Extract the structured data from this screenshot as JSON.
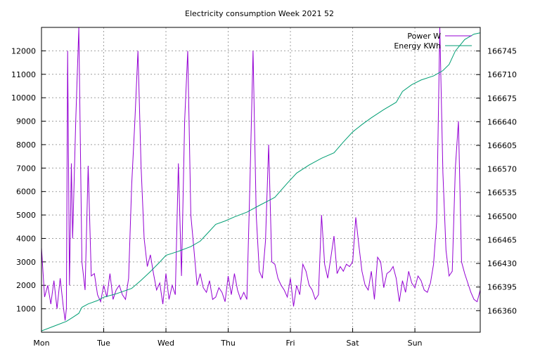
{
  "chart_data": {
    "type": "line",
    "title": "Electricity consumption Week 2021 52",
    "x_tick_labels": [
      "Mon",
      "Tue",
      "Wed",
      "Thu",
      "Fri",
      "Sat",
      "Sun"
    ],
    "xlim_days": [
      0,
      7.05
    ],
    "y_left": {
      "ticks": [
        1000,
        2000,
        3000,
        4000,
        5000,
        6000,
        7000,
        8000,
        9000,
        10000,
        11000,
        12000
      ],
      "ylim": [
        0,
        13000
      ]
    },
    "y_right": {
      "ticks": [
        166360,
        166395,
        166430,
        166465,
        166500,
        166535,
        166570,
        166605,
        166640,
        166675,
        166710,
        166745
      ],
      "ylim": [
        166328,
        166780
      ]
    },
    "grid": true,
    "legend_position": "top-right",
    "series": [
      {
        "name": "Power W",
        "axis": "left",
        "color": "#9400D3",
        "x_days": [
          0.0,
          0.05,
          0.1,
          0.15,
          0.2,
          0.25,
          0.3,
          0.35,
          0.38,
          0.4,
          0.42,
          0.45,
          0.48,
          0.5,
          0.55,
          0.6,
          0.65,
          0.7,
          0.75,
          0.8,
          0.85,
          0.9,
          0.95,
          1.0,
          1.05,
          1.1,
          1.15,
          1.2,
          1.25,
          1.3,
          1.35,
          1.4,
          1.45,
          1.5,
          1.55,
          1.6,
          1.65,
          1.7,
          1.75,
          1.8,
          1.85,
          1.9,
          1.95,
          2.0,
          2.05,
          2.1,
          2.15,
          2.2,
          2.25,
          2.3,
          2.35,
          2.4,
          2.45,
          2.5,
          2.55,
          2.6,
          2.65,
          2.7,
          2.75,
          2.8,
          2.85,
          2.9,
          2.95,
          3.0,
          3.05,
          3.1,
          3.15,
          3.2,
          3.25,
          3.3,
          3.35,
          3.4,
          3.45,
          3.5,
          3.55,
          3.6,
          3.65,
          3.7,
          3.75,
          3.8,
          3.85,
          3.9,
          3.95,
          4.0,
          4.05,
          4.1,
          4.15,
          4.2,
          4.25,
          4.3,
          4.35,
          4.4,
          4.45,
          4.5,
          4.55,
          4.6,
          4.65,
          4.7,
          4.75,
          4.8,
          4.85,
          4.9,
          4.95,
          5.0,
          5.05,
          5.1,
          5.15,
          5.2,
          5.25,
          5.3,
          5.35,
          5.4,
          5.45,
          5.5,
          5.55,
          5.6,
          5.65,
          5.7,
          5.75,
          5.8,
          5.85,
          5.9,
          5.95,
          6.0,
          6.05,
          6.1,
          6.15,
          6.2,
          6.25,
          6.3,
          6.35,
          6.4,
          6.45,
          6.5,
          6.55,
          6.6,
          6.65,
          6.7,
          6.75,
          6.8,
          6.85,
          6.9,
          6.95,
          7.0,
          7.05
        ],
        "values": [
          3600,
          1500,
          2000,
          1200,
          2200,
          1000,
          2300,
          1100,
          500,
          1000,
          12000,
          2000,
          7200,
          4000,
          9000,
          13000,
          3000,
          1800,
          7100,
          2400,
          2500,
          1600,
          1300,
          2000,
          1500,
          2500,
          1400,
          1800,
          2000,
          1600,
          1400,
          2300,
          6300,
          9000,
          12000,
          7100,
          4000,
          2800,
          3300,
          2500,
          1800,
          2100,
          1200,
          2500,
          1400,
          2000,
          1600,
          7200,
          2400,
          9000,
          12000,
          5000,
          3500,
          2000,
          2500,
          1900,
          1700,
          2200,
          1400,
          1500,
          1900,
          1700,
          1300,
          2400,
          1600,
          2500,
          1800,
          1400,
          1700,
          1400,
          6400,
          12000,
          5000,
          2600,
          2300,
          3900,
          8000,
          3000,
          2900,
          2300,
          2000,
          1800,
          1500,
          2300,
          1100,
          2000,
          1600,
          2900,
          2600,
          2000,
          1800,
          1400,
          1600,
          5000,
          2900,
          2300,
          3200,
          4100,
          2500,
          2800,
          2600,
          2900,
          2800,
          3000,
          4900,
          3700,
          2600,
          2000,
          1800,
          2600,
          1400,
          3200,
          3000,
          1900,
          2500,
          2600,
          2800,
          2300,
          1300,
          2200,
          1700,
          2600,
          2100,
          1900,
          2400,
          2200,
          1800,
          1700,
          2100,
          2900,
          4700,
          13000,
          6800,
          3500,
          2400,
          2600,
          7000,
          9000,
          3000,
          2500,
          2100,
          1700,
          1400,
          1300,
          1800
        ]
      },
      {
        "name": "Energy KWh",
        "axis": "right",
        "color": "#009E73",
        "x_days": [
          0.0,
          0.2,
          0.4,
          0.5,
          0.6,
          0.65,
          0.75,
          0.9,
          1.0,
          1.2,
          1.45,
          1.6,
          1.75,
          1.9,
          2.0,
          2.2,
          2.4,
          2.55,
          2.7,
          2.8,
          2.95,
          3.1,
          3.3,
          3.5,
          3.75,
          3.95,
          4.1,
          4.3,
          4.5,
          4.7,
          4.85,
          5.0,
          5.15,
          5.3,
          5.5,
          5.7,
          5.8,
          5.95,
          6.1,
          6.3,
          6.45,
          6.55,
          6.65,
          6.8,
          6.95,
          7.05
        ],
        "values": [
          166330,
          166337,
          166344,
          166350,
          166356,
          166365,
          166370,
          166375,
          166380,
          166385,
          166393,
          166405,
          166418,
          166432,
          166442,
          166448,
          166455,
          166463,
          166478,
          166488,
          166493,
          166499,
          166506,
          166516,
          166528,
          166549,
          166564,
          166576,
          166586,
          166594,
          166610,
          166625,
          166636,
          166646,
          166658,
          166669,
          166685,
          166695,
          166702,
          166708,
          166716,
          166725,
          166745,
          166762,
          166770,
          166772
        ]
      }
    ]
  }
}
